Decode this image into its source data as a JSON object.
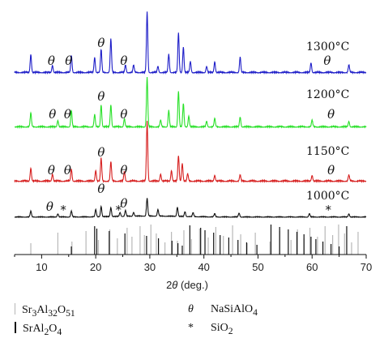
{
  "chart_data": {
    "type": "line",
    "xlabel_parts": [
      "2",
      "θ",
      " (deg.)"
    ],
    "xlim": [
      5,
      70
    ],
    "xticks": [
      10,
      20,
      30,
      40,
      50,
      60,
      70
    ],
    "series": [
      {
        "name": "1300°C",
        "color": "#1e1ec8",
        "peaks": [
          [
            8,
            0.3
          ],
          [
            12,
            0.12
          ],
          [
            15.5,
            0.28
          ],
          [
            19.8,
            0.25
          ],
          [
            21,
            0.38
          ],
          [
            22.8,
            0.55
          ],
          [
            25.5,
            0.12
          ],
          [
            27,
            0.12
          ],
          [
            29.5,
            1.0
          ],
          [
            31.5,
            0.1
          ],
          [
            33.5,
            0.3
          ],
          [
            35.3,
            0.65
          ],
          [
            36.2,
            0.42
          ],
          [
            37.5,
            0.18
          ],
          [
            40.5,
            0.1
          ],
          [
            42,
            0.18
          ],
          [
            46.7,
            0.25
          ],
          [
            59.8,
            0.16
          ],
          [
            66.8,
            0.12
          ]
        ]
      },
      {
        "name": "1200°C",
        "color": "#28e028",
        "peaks": [
          [
            8,
            0.25
          ],
          [
            13,
            0.12
          ],
          [
            15.5,
            0.3
          ],
          [
            19.8,
            0.22
          ],
          [
            21,
            0.4
          ],
          [
            22.8,
            0.4
          ],
          [
            25.3,
            0.15
          ],
          [
            29.5,
            0.9
          ],
          [
            32,
            0.12
          ],
          [
            33.5,
            0.3
          ],
          [
            35.3,
            0.65
          ],
          [
            36.2,
            0.42
          ],
          [
            37.2,
            0.2
          ],
          [
            40.5,
            0.1
          ],
          [
            42,
            0.15
          ],
          [
            46.7,
            0.18
          ],
          [
            60,
            0.12
          ],
          [
            66.8,
            0.1
          ]
        ]
      },
      {
        "name": "1150°C",
        "color": "#d61e1e",
        "peaks": [
          [
            8,
            0.22
          ],
          [
            12,
            0.12
          ],
          [
            15.5,
            0.2
          ],
          [
            20,
            0.18
          ],
          [
            21,
            0.38
          ],
          [
            22.8,
            0.32
          ],
          [
            25.3,
            0.16
          ],
          [
            29.5,
            1.0
          ],
          [
            32,
            0.12
          ],
          [
            34,
            0.18
          ],
          [
            35.3,
            0.42
          ],
          [
            36,
            0.3
          ],
          [
            37,
            0.12
          ],
          [
            42,
            0.1
          ],
          [
            46.7,
            0.1
          ],
          [
            60,
            0.1
          ],
          [
            66.8,
            0.1
          ]
        ]
      },
      {
        "name": "1000°C",
        "color": "#111111",
        "peaks": [
          [
            8,
            0.18
          ],
          [
            13,
            0.1
          ],
          [
            15.5,
            0.18
          ],
          [
            20,
            0.22
          ],
          [
            21,
            0.32
          ],
          [
            22.8,
            0.28
          ],
          [
            24.5,
            0.12
          ],
          [
            25.5,
            0.18
          ],
          [
            27,
            0.12
          ],
          [
            29.5,
            0.55
          ],
          [
            31.5,
            0.2
          ],
          [
            35.1,
            0.28
          ],
          [
            36.5,
            0.15
          ],
          [
            38,
            0.12
          ],
          [
            42,
            0.1
          ],
          [
            46.5,
            0.12
          ],
          [
            59.5,
            0.1
          ],
          [
            66.8,
            0.1
          ]
        ]
      }
    ],
    "reference_patterns": {
      "Sr3Al32O51": [
        8.0,
        13.0,
        15.6,
        18.2,
        20.5,
        22.6,
        24.0,
        25.8,
        26.7,
        28.2,
        29.0,
        30.2,
        31.2,
        32.8,
        34.0,
        35.1,
        36.3,
        37.7,
        39.2,
        40.8,
        42.2,
        43.6,
        45.3,
        46.8,
        48.0,
        49.5,
        52.2,
        54.0,
        56.1,
        57.3,
        58.5,
        59.6,
        61.0,
        62.4,
        63.8,
        64.9,
        66.0,
        67.3,
        68.5
      ],
      "SrAl2O4": [
        15.5,
        19.8,
        20.2,
        22.5,
        25.4,
        29.4,
        31.6,
        34.1,
        35.2,
        36.0,
        37.4,
        39.4,
        40.2,
        41.8,
        43.0,
        44.6,
        46.3,
        47.9,
        49.8,
        52.4,
        54.0,
        55.6,
        57.2,
        58.5,
        59.8,
        60.7,
        62.0,
        63.5,
        65.0,
        66.4
      ]
    },
    "annotations": [
      {
        "series": 0,
        "symbol": "θ",
        "x": 11.8,
        "kind": "theta"
      },
      {
        "series": 0,
        "symbol": "θ",
        "x": 15.0,
        "kind": "theta"
      },
      {
        "series": 0,
        "symbol": "θ",
        "x": 21.0,
        "kind": "theta"
      },
      {
        "series": 0,
        "symbol": "θ",
        "x": 25.2,
        "kind": "theta"
      },
      {
        "series": 0,
        "symbol": "θ",
        "x": 62.8,
        "kind": "theta"
      },
      {
        "series": 1,
        "symbol": "θ",
        "x": 12.0,
        "kind": "theta"
      },
      {
        "series": 1,
        "symbol": "θ",
        "x": 14.8,
        "kind": "theta"
      },
      {
        "series": 1,
        "symbol": "θ",
        "x": 21.0,
        "kind": "theta"
      },
      {
        "series": 1,
        "symbol": "θ",
        "x": 25.2,
        "kind": "theta"
      },
      {
        "series": 1,
        "symbol": "θ",
        "x": 63.5,
        "kind": "theta"
      },
      {
        "series": 2,
        "symbol": "θ",
        "x": 11.8,
        "kind": "theta"
      },
      {
        "series": 2,
        "symbol": "θ",
        "x": 14.8,
        "kind": "theta"
      },
      {
        "series": 2,
        "symbol": "θ",
        "x": 21.0,
        "kind": "theta"
      },
      {
        "series": 2,
        "symbol": "θ",
        "x": 25.2,
        "kind": "theta"
      },
      {
        "series": 2,
        "symbol": "θ",
        "x": 63.5,
        "kind": "theta"
      },
      {
        "series": 3,
        "symbol": "θ",
        "x": 11.5,
        "kind": "theta"
      },
      {
        "series": 3,
        "symbol": "*",
        "x": 14.0,
        "kind": "star"
      },
      {
        "series": 3,
        "symbol": "θ",
        "x": 21.0,
        "kind": "theta"
      },
      {
        "series": 3,
        "symbol": "*",
        "x": 24.2,
        "kind": "star"
      },
      {
        "series": 3,
        "symbol": "θ",
        "x": 25.2,
        "kind": "theta"
      },
      {
        "series": 3,
        "symbol": "*",
        "x": 63.0,
        "kind": "star"
      }
    ]
  },
  "legend": {
    "ref1": {
      "text": "Sr",
      "s1": "3",
      "t2": "Al",
      "s2": "32",
      "t3": "O",
      "s3": "51"
    },
    "ref2": {
      "text": "SrAl",
      "s1": "2",
      "t2": "O",
      "s2": "4"
    },
    "phase1": {
      "symbol": "θ",
      "text": "NaSiAlO",
      "s1": "4"
    },
    "phase2": {
      "symbol": "*",
      "text": "SiO",
      "s1": "2"
    }
  }
}
